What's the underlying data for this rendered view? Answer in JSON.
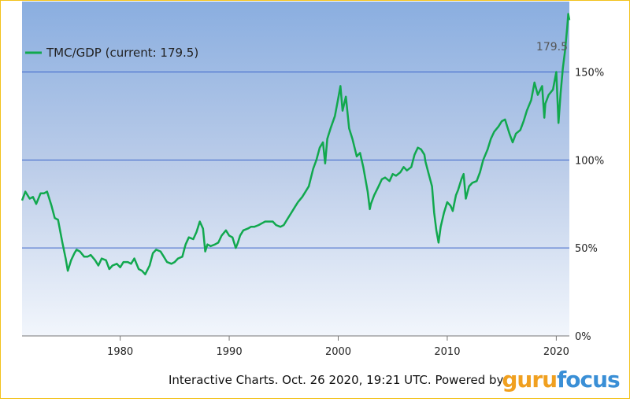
{
  "chart_data": {
    "type": "line",
    "title": "",
    "xlabel": "",
    "ylabel": "",
    "xlim": [
      1971.0,
      2021.2
    ],
    "ylim": [
      0,
      190
    ],
    "x_ticks": [
      1980,
      1990,
      2000,
      2010,
      2020
    ],
    "x_tick_labels": [
      "1980",
      "1990",
      "2000",
      "2010",
      "2020"
    ],
    "y_ticks": [
      0,
      50,
      100,
      150
    ],
    "y_tick_labels": [
      "0%",
      "50%",
      "100%",
      "150%"
    ],
    "grid": "horizontal",
    "legend_position": "top-left",
    "current_value_label": "179.5",
    "series": [
      {
        "name": "TMC/GDP (current: 179.5)",
        "color": "#11a84e",
        "points": [
          [
            1971.0,
            77
          ],
          [
            1971.3,
            82
          ],
          [
            1971.7,
            78
          ],
          [
            1972.0,
            79
          ],
          [
            1972.3,
            75
          ],
          [
            1972.7,
            81
          ],
          [
            1973.0,
            81
          ],
          [
            1973.3,
            82
          ],
          [
            1973.7,
            74
          ],
          [
            1974.0,
            67
          ],
          [
            1974.3,
            66
          ],
          [
            1974.7,
            53
          ],
          [
            1975.0,
            44
          ],
          [
            1975.2,
            37
          ],
          [
            1975.5,
            43
          ],
          [
            1975.8,
            47
          ],
          [
            1976.0,
            49
          ],
          [
            1976.3,
            48
          ],
          [
            1976.7,
            45
          ],
          [
            1977.0,
            45
          ],
          [
            1977.3,
            46
          ],
          [
            1977.7,
            43
          ],
          [
            1978.0,
            40
          ],
          [
            1978.3,
            44
          ],
          [
            1978.7,
            43
          ],
          [
            1979.0,
            38
          ],
          [
            1979.3,
            40
          ],
          [
            1979.7,
            41
          ],
          [
            1980.0,
            39
          ],
          [
            1980.3,
            42
          ],
          [
            1980.7,
            42
          ],
          [
            1981.0,
            41
          ],
          [
            1981.3,
            44
          ],
          [
            1981.7,
            38
          ],
          [
            1982.0,
            37
          ],
          [
            1982.3,
            35
          ],
          [
            1982.7,
            40
          ],
          [
            1983.0,
            47
          ],
          [
            1983.3,
            49
          ],
          [
            1983.7,
            48
          ],
          [
            1984.0,
            45
          ],
          [
            1984.3,
            42
          ],
          [
            1984.7,
            41
          ],
          [
            1985.0,
            42
          ],
          [
            1985.3,
            44
          ],
          [
            1985.7,
            45
          ],
          [
            1986.0,
            52
          ],
          [
            1986.3,
            56
          ],
          [
            1986.7,
            55
          ],
          [
            1987.0,
            59
          ],
          [
            1987.3,
            65
          ],
          [
            1987.6,
            61
          ],
          [
            1987.8,
            48
          ],
          [
            1988.0,
            52
          ],
          [
            1988.3,
            51
          ],
          [
            1988.7,
            52
          ],
          [
            1989.0,
            53
          ],
          [
            1989.3,
            57
          ],
          [
            1989.7,
            60
          ],
          [
            1990.0,
            57
          ],
          [
            1990.3,
            56
          ],
          [
            1990.6,
            50
          ],
          [
            1990.8,
            53
          ],
          [
            1991.0,
            57
          ],
          [
            1991.3,
            60
          ],
          [
            1991.7,
            61
          ],
          [
            1992.0,
            62
          ],
          [
            1992.3,
            62
          ],
          [
            1992.7,
            63
          ],
          [
            1993.0,
            64
          ],
          [
            1993.3,
            65
          ],
          [
            1993.7,
            65
          ],
          [
            1994.0,
            65
          ],
          [
            1994.3,
            63
          ],
          [
            1994.7,
            62
          ],
          [
            1995.0,
            63
          ],
          [
            1995.3,
            66
          ],
          [
            1995.7,
            70
          ],
          [
            1996.0,
            73
          ],
          [
            1996.3,
            76
          ],
          [
            1996.7,
            79
          ],
          [
            1997.0,
            82
          ],
          [
            1997.3,
            85
          ],
          [
            1997.7,
            95
          ],
          [
            1998.0,
            100
          ],
          [
            1998.3,
            107
          ],
          [
            1998.6,
            110
          ],
          [
            1998.8,
            98
          ],
          [
            1999.0,
            112
          ],
          [
            1999.3,
            118
          ],
          [
            1999.7,
            125
          ],
          [
            2000.0,
            135
          ],
          [
            2000.2,
            142
          ],
          [
            2000.4,
            128
          ],
          [
            2000.7,
            136
          ],
          [
            2001.0,
            118
          ],
          [
            2001.3,
            112
          ],
          [
            2001.7,
            102
          ],
          [
            2002.0,
            104
          ],
          [
            2002.3,
            96
          ],
          [
            2002.7,
            82
          ],
          [
            2002.9,
            72
          ],
          [
            2003.0,
            75
          ],
          [
            2003.3,
            80
          ],
          [
            2003.7,
            85
          ],
          [
            2004.0,
            89
          ],
          [
            2004.3,
            90
          ],
          [
            2004.7,
            88
          ],
          [
            2005.0,
            92
          ],
          [
            2005.3,
            91
          ],
          [
            2005.7,
            93
          ],
          [
            2006.0,
            96
          ],
          [
            2006.3,
            94
          ],
          [
            2006.7,
            96
          ],
          [
            2007.0,
            103
          ],
          [
            2007.3,
            107
          ],
          [
            2007.6,
            106
          ],
          [
            2007.9,
            103
          ],
          [
            2008.0,
            99
          ],
          [
            2008.3,
            92
          ],
          [
            2008.6,
            85
          ],
          [
            2008.8,
            70
          ],
          [
            2009.0,
            60
          ],
          [
            2009.2,
            53
          ],
          [
            2009.4,
            62
          ],
          [
            2009.7,
            70
          ],
          [
            2010.0,
            76
          ],
          [
            2010.3,
            74
          ],
          [
            2010.5,
            71
          ],
          [
            2010.8,
            80
          ],
          [
            2011.0,
            83
          ],
          [
            2011.3,
            89
          ],
          [
            2011.5,
            92
          ],
          [
            2011.7,
            78
          ],
          [
            2012.0,
            85
          ],
          [
            2012.3,
            87
          ],
          [
            2012.7,
            88
          ],
          [
            2013.0,
            93
          ],
          [
            2013.3,
            100
          ],
          [
            2013.7,
            106
          ],
          [
            2014.0,
            112
          ],
          [
            2014.3,
            116
          ],
          [
            2014.7,
            119
          ],
          [
            2015.0,
            122
          ],
          [
            2015.3,
            123
          ],
          [
            2015.7,
            115
          ],
          [
            2016.0,
            110
          ],
          [
            2016.3,
            115
          ],
          [
            2016.7,
            117
          ],
          [
            2017.0,
            122
          ],
          [
            2017.3,
            128
          ],
          [
            2017.7,
            134
          ],
          [
            2018.0,
            144
          ],
          [
            2018.3,
            137
          ],
          [
            2018.7,
            142
          ],
          [
            2018.9,
            124
          ],
          [
            2019.0,
            132
          ],
          [
            2019.3,
            137
          ],
          [
            2019.7,
            140
          ],
          [
            2020.0,
            150
          ],
          [
            2020.2,
            121
          ],
          [
            2020.4,
            138
          ],
          [
            2020.6,
            152
          ],
          [
            2020.8,
            162
          ],
          [
            2021.0,
            175
          ],
          [
            2021.1,
            183
          ],
          [
            2021.2,
            179.5
          ]
        ]
      }
    ]
  },
  "footer": {
    "text": "Interactive Charts. Oct. 26 2020, 19:21 UTC. Powered by",
    "brand_part1": "guru",
    "brand_part2": "focus"
  }
}
